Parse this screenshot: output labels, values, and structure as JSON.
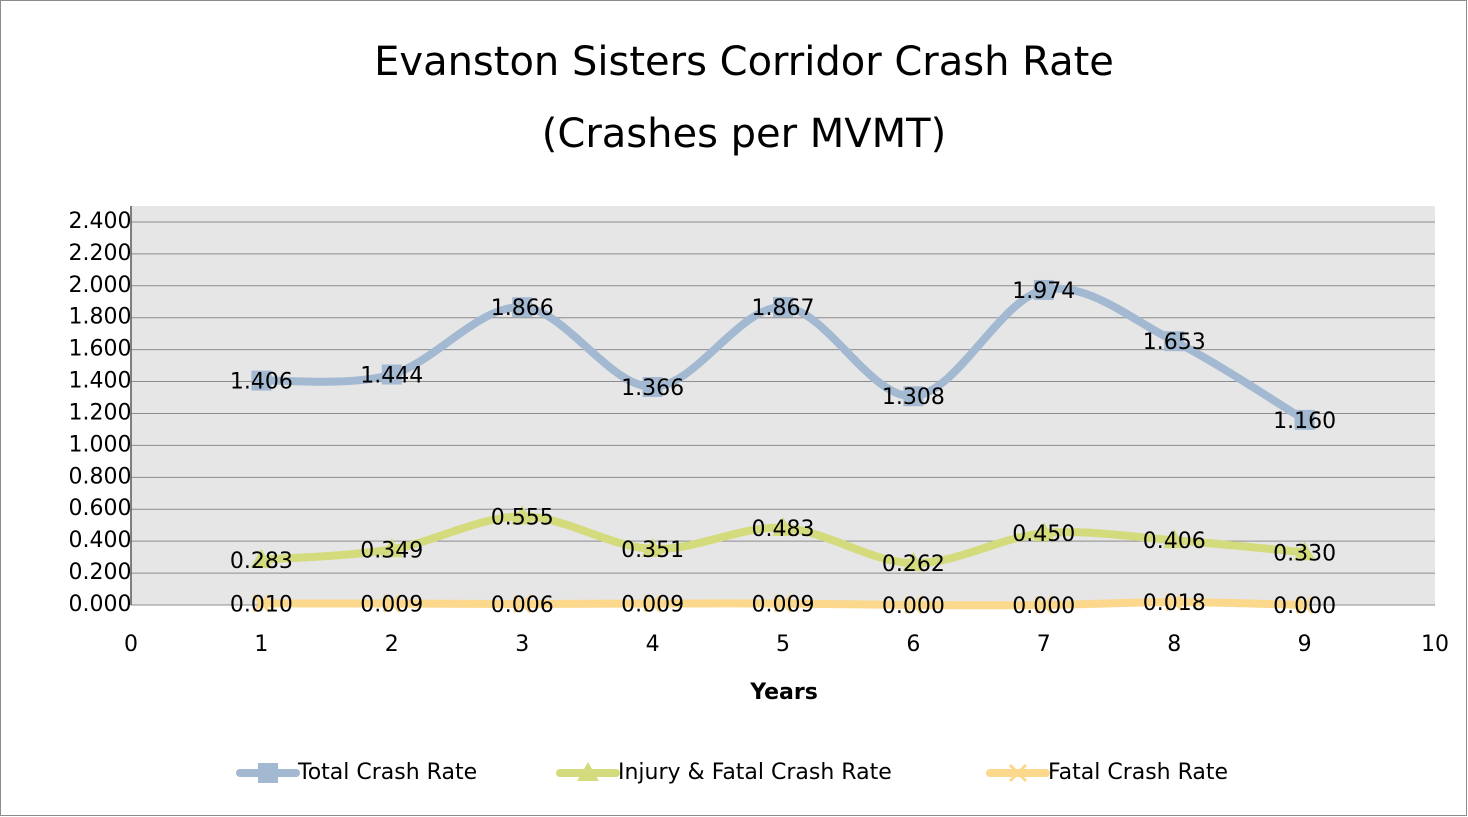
{
  "chart_data": {
    "type": "line",
    "title": [
      "Evanston Sisters Corridor Crash Rate",
      "(Crashes per MVMT)"
    ],
    "x_label": "Years",
    "x": [
      1,
      2,
      3,
      4,
      5,
      6,
      7,
      8,
      9
    ],
    "xlim": [
      0,
      10
    ],
    "xticks": [
      0,
      1,
      2,
      3,
      4,
      5,
      6,
      7,
      8,
      9,
      10
    ],
    "ylim": [
      0,
      2.5
    ],
    "yticks": [
      {
        "value": 0,
        "label": "0.000"
      },
      {
        "value": 0.2,
        "label": "0.200"
      },
      {
        "value": 0.4,
        "label": "0.400"
      },
      {
        "value": 0.6,
        "label": "0.600"
      },
      {
        "value": 0.8,
        "label": "0.800"
      },
      {
        "value": 1.0,
        "label": "1.000"
      },
      {
        "value": 1.2,
        "label": "1.200"
      },
      {
        "value": 1.4,
        "label": "1.400"
      },
      {
        "value": 1.6,
        "label": "1.600"
      },
      {
        "value": 1.8,
        "label": "1.800"
      },
      {
        "value": 2.0,
        "label": "2.000"
      },
      {
        "value": 2.2,
        "label": "2.200"
      },
      {
        "value": 2.4,
        "label": "2.400"
      }
    ],
    "grid": true,
    "smooth": true,
    "legend": "bottom",
    "series": [
      {
        "name": "Total Crash Rate",
        "color": "#a3b9d1",
        "marker": "square",
        "values": [
          1.406,
          1.444,
          1.866,
          1.366,
          1.867,
          1.308,
          1.974,
          1.653,
          1.16
        ],
        "value_labels": [
          "1.406",
          "1.444",
          "1.866",
          "1.366",
          "1.867",
          "1.308",
          "1.974",
          "1.653",
          "1.160"
        ]
      },
      {
        "name": "Injury & Fatal Crash Rate",
        "color": "#d3db7c",
        "marker": "triangle",
        "values": [
          0.283,
          0.349,
          0.555,
          0.351,
          0.483,
          0.262,
          0.45,
          0.406,
          0.33
        ],
        "value_labels": [
          "0.283",
          "0.349",
          "0.555",
          "0.351",
          "0.483",
          "0.262",
          "0.450",
          "0.406",
          "0.330"
        ]
      },
      {
        "name": "Fatal Crash Rate",
        "color": "#fbd88c",
        "marker": "x",
        "values": [
          0.01,
          0.009,
          0.006,
          0.009,
          0.009,
          0,
          0,
          0.018,
          0
        ],
        "value_labels": [
          "0.010",
          "0.009",
          "0.006",
          "0.009",
          "0.009",
          "0.000",
          "0.000",
          "0.018",
          "0.000"
        ]
      }
    ]
  }
}
